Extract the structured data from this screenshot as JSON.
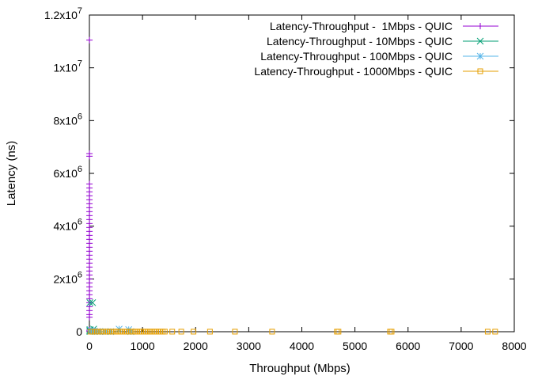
{
  "chart_data": {
    "type": "scatter",
    "xlabel": "Throughput (Mbps)",
    "ylabel": "Latency (ns)",
    "xlim": [
      0,
      8000
    ],
    "ylim": [
      0,
      12000000
    ],
    "x_ticks": [
      {
        "value": 0,
        "label": "0"
      },
      {
        "value": 1000,
        "label": "1000"
      },
      {
        "value": 2000,
        "label": "2000"
      },
      {
        "value": 3000,
        "label": "3000"
      },
      {
        "value": 4000,
        "label": "4000"
      },
      {
        "value": 5000,
        "label": "5000"
      },
      {
        "value": 6000,
        "label": "6000"
      },
      {
        "value": 7000,
        "label": "7000"
      },
      {
        "value": 8000,
        "label": "8000"
      }
    ],
    "y_ticks": [
      {
        "value": 0,
        "label": "0",
        "exp": ""
      },
      {
        "value": 2000000,
        "label": "2x10",
        "exp": "6"
      },
      {
        "value": 4000000,
        "label": "4x10",
        "exp": "6"
      },
      {
        "value": 6000000,
        "label": "6x10",
        "exp": "6"
      },
      {
        "value": 8000000,
        "label": "8x10",
        "exp": "6"
      },
      {
        "value": 10000000,
        "label": "1x10",
        "exp": "7"
      },
      {
        "value": 12000000,
        "label": "1.2x10",
        "exp": "7"
      }
    ],
    "legend_position": "top-right",
    "grid": false,
    "series": [
      {
        "name": "Latency-Throughput -  1Mbps - QUIC",
        "color": "#9400d3",
        "marker": "plus",
        "x": [
          1,
          1,
          1,
          1,
          1,
          1,
          1,
          1,
          1,
          1,
          1,
          1,
          1,
          1,
          1,
          1,
          1,
          1,
          1,
          1,
          1,
          1,
          1,
          1,
          1,
          1,
          1,
          1,
          1,
          1,
          1,
          1,
          1,
          1,
          1,
          1,
          1,
          1,
          1,
          1
        ],
        "y": [
          11050000,
          6750000,
          6650000,
          5600000,
          5450000,
          5300000,
          5150000,
          5000000,
          4850000,
          4700000,
          4550000,
          4400000,
          4250000,
          4100000,
          3950000,
          3800000,
          3650000,
          3500000,
          3350000,
          3200000,
          3050000,
          2900000,
          2750000,
          2600000,
          2450000,
          2300000,
          2150000,
          2000000,
          1850000,
          1700000,
          1550000,
          1400000,
          1250000,
          1100000,
          950000,
          800000,
          650000,
          550000,
          60000,
          20000
        ]
      },
      {
        "name": "Latency-Throughput - 10Mbps - QUIC",
        "color": "#009e73",
        "marker": "cross",
        "x": [
          10,
          10,
          10,
          10,
          10,
          10,
          60,
          80
        ],
        "y": [
          1100000,
          80000,
          60000,
          40000,
          20000,
          10000,
          1100000,
          100000
        ]
      },
      {
        "name": "Latency-Throughput - 100Mbps - QUIC",
        "color": "#56b4e9",
        "marker": "star",
        "x": [
          20,
          40,
          60,
          80,
          100,
          150,
          200,
          300,
          400,
          560,
          740,
          780
        ],
        "y": [
          50000,
          30000,
          20000,
          15000,
          10000,
          8000,
          6000,
          5000,
          4000,
          100000,
          80000,
          3000
        ]
      },
      {
        "name": "Latency-Throughput - 1000Mbps - QUIC",
        "color": "#e69f00",
        "marker": "square",
        "x": [
          20,
          60,
          100,
          140,
          180,
          220,
          260,
          300,
          340,
          380,
          420,
          460,
          500,
          540,
          580,
          620,
          660,
          700,
          740,
          780,
          820,
          860,
          900,
          940,
          980,
          1020,
          1060,
          1100,
          1140,
          1180,
          1220,
          1260,
          1300,
          1340,
          1380,
          1420,
          1560,
          1730,
          1960,
          2270,
          2740,
          3440,
          4660,
          4690,
          5660,
          5690,
          7500,
          7640
        ],
        "y": [
          3000,
          3000,
          3000,
          3000,
          3000,
          3000,
          3000,
          3000,
          3000,
          3000,
          3000,
          3000,
          3000,
          3000,
          3000,
          3000,
          3000,
          3000,
          3000,
          3000,
          3000,
          3000,
          3000,
          3000,
          3000,
          3000,
          3000,
          3000,
          3000,
          3000,
          3000,
          3000,
          3000,
          3000,
          3000,
          3000,
          2000,
          2000,
          2000,
          2000,
          2000,
          2000,
          2000,
          2000,
          2000,
          2000,
          2000,
          2000
        ]
      }
    ]
  }
}
